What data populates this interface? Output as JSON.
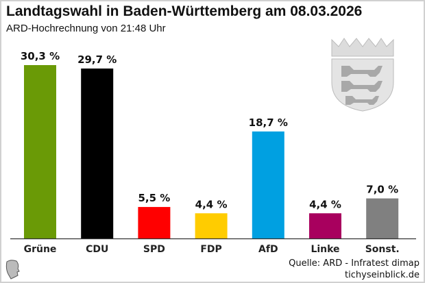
{
  "title": "Landtagswahl in Baden-Württemberg am 08.03.2026",
  "subtitle": "ARD-Hochrechnung von 21:48 Uhr",
  "source": "Quelle: ARD - Infratest dimap",
  "site": "tichyseinblick.de",
  "chart_data": {
    "type": "bar",
    "categories": [
      "Grüne",
      "CDU",
      "SPD",
      "FDP",
      "AfD",
      "Linke",
      "Sonst."
    ],
    "values": [
      30.3,
      29.7,
      5.5,
      4.4,
      18.7,
      4.4,
      7.0
    ],
    "labels": [
      "30,3 %",
      "29,7 %",
      "5,5 %",
      "4,4 %",
      "18,7 %",
      "4,4 %",
      "7,0 %"
    ],
    "colors": [
      "#6a9a06",
      "#000000",
      "#ff0000",
      "#ffcc00",
      "#00a0e1",
      "#a8005e",
      "#808080"
    ],
    "title": "Landtagswahl in Baden-Württemberg am 08.03.2026",
    "subtitle": "ARD-Hochrechnung von 21:48 Uhr",
    "xlabel": "",
    "ylabel": "",
    "ylim": [
      0,
      31
    ],
    "grid": false
  }
}
